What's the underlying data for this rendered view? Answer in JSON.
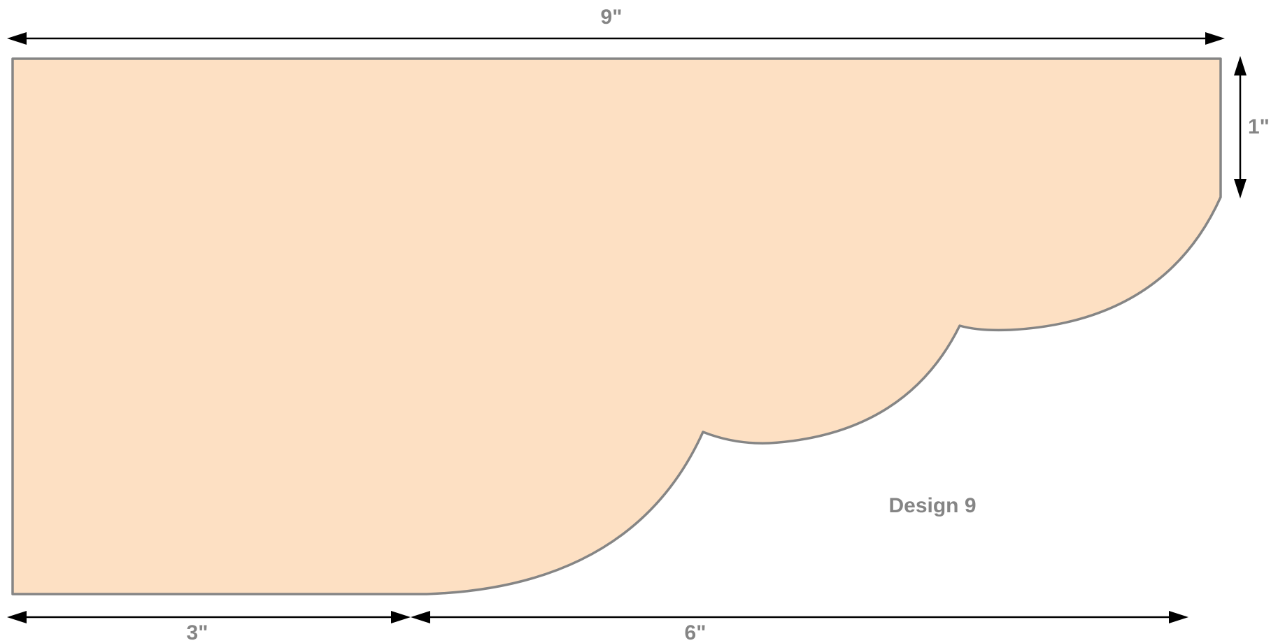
{
  "design": {
    "title": "Design 9",
    "shape_fill": "#fde0c3",
    "shape_stroke": "#858585",
    "label_color": "#858585",
    "arrow_color": "#000000"
  },
  "dimensions": {
    "overall_width": "9\"",
    "height": "1\"",
    "flat_bottom": "3\"",
    "curved_span": "6\""
  }
}
